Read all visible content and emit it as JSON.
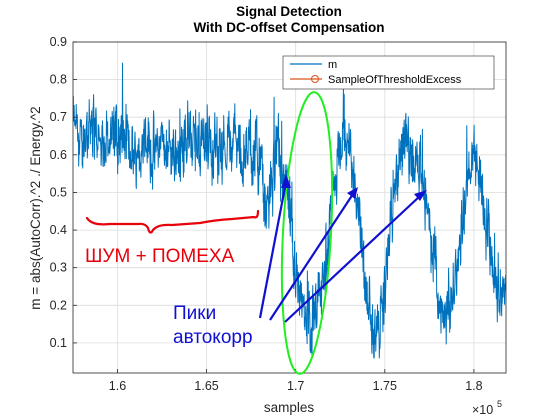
{
  "chart_data": {
    "type": "line",
    "title": "Signal Detection",
    "subtitle": "With DC-offset Compensation",
    "xlabel": "samples",
    "ylabel": "m = abs(AutoCorr).^2 ./ Energy.^2",
    "x_exponent_label": "×10",
    "x_exponent_power": "5",
    "xlim": [
      1.575,
      1.818
    ],
    "ylim": [
      0.02,
      0.9
    ],
    "xticks": [
      1.6,
      1.65,
      1.7,
      1.75,
      1.8
    ],
    "xtick_labels": [
      "1.6",
      "1.65",
      "1.7",
      "1.75",
      "1.8"
    ],
    "yticks": [
      0.1,
      0.2,
      0.3,
      0.4,
      0.5,
      0.6,
      0.7,
      0.8,
      0.9
    ],
    "ytick_labels": [
      "0.1",
      "0.2",
      "0.3",
      "0.4",
      "0.5",
      "0.6",
      "0.7",
      "0.8",
      "0.9"
    ],
    "grid": true,
    "legend_position": "top-right",
    "series": [
      {
        "name": "m",
        "color": "#0072bd",
        "noise_amplitude": 0.07,
        "x": [
          1.575,
          1.58,
          1.585,
          1.59,
          1.595,
          1.6,
          1.605,
          1.61,
          1.615,
          1.62,
          1.625,
          1.63,
          1.635,
          1.64,
          1.645,
          1.65,
          1.655,
          1.66,
          1.665,
          1.67,
          1.675,
          1.68,
          1.683,
          1.686,
          1.689,
          1.692,
          1.695,
          1.698,
          1.701,
          1.704,
          1.707,
          1.71,
          1.713,
          1.716,
          1.719,
          1.722,
          1.725,
          1.728,
          1.731,
          1.734,
          1.737,
          1.74,
          1.743,
          1.746,
          1.749,
          1.752,
          1.755,
          1.758,
          1.761,
          1.764,
          1.767,
          1.77,
          1.773,
          1.776,
          1.779,
          1.782,
          1.785,
          1.788,
          1.791,
          1.794,
          1.797,
          1.8,
          1.803,
          1.806,
          1.809,
          1.812,
          1.815,
          1.818
        ],
        "y": [
          0.68,
          0.62,
          0.7,
          0.62,
          0.66,
          0.65,
          0.63,
          0.6,
          0.67,
          0.6,
          0.64,
          0.62,
          0.6,
          0.66,
          0.6,
          0.65,
          0.62,
          0.63,
          0.65,
          0.6,
          0.62,
          0.58,
          0.45,
          0.5,
          0.62,
          0.56,
          0.5,
          0.35,
          0.28,
          0.2,
          0.15,
          0.13,
          0.2,
          0.28,
          0.4,
          0.55,
          0.6,
          0.65,
          0.6,
          0.5,
          0.35,
          0.22,
          0.15,
          0.12,
          0.2,
          0.35,
          0.5,
          0.55,
          0.65,
          0.62,
          0.6,
          0.58,
          0.48,
          0.36,
          0.28,
          0.2,
          0.15,
          0.22,
          0.32,
          0.45,
          0.55,
          0.6,
          0.55,
          0.45,
          0.35,
          0.28,
          0.25,
          0.25
        ]
      },
      {
        "name": "SampleOfThresholdExcess",
        "color": "#d95319",
        "marker": "circle",
        "x": [],
        "y": []
      }
    ],
    "annotations": [
      {
        "text": "ШУМ + ПОМЕХА",
        "color": "#e8000b"
      },
      {
        "text": "Пики",
        "color": "#1010d0"
      },
      {
        "text": "автокорр",
        "color": "#1010d0"
      }
    ],
    "marker_colors": {
      "red_curve": "#e8000b",
      "green_ellipse": "#22ee22",
      "blue_arrows": "#1010d0"
    }
  }
}
